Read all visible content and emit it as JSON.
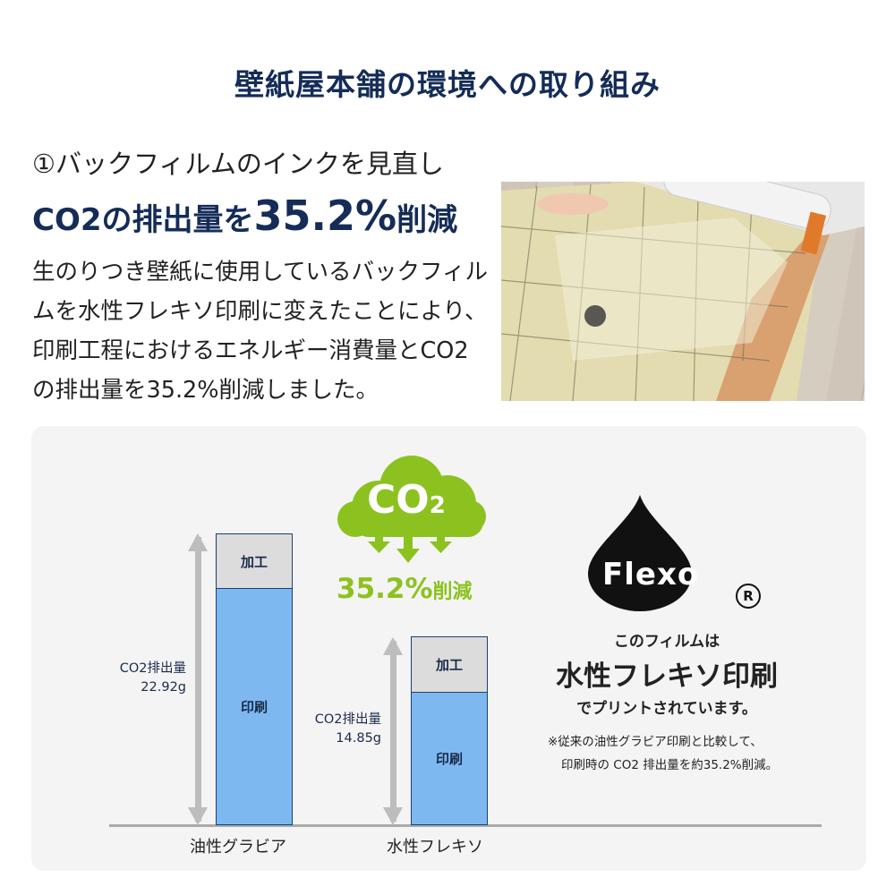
{
  "title": "壁紙屋本舗の環境への取り組み",
  "section": {
    "subheading": "①バックフィルムのインクを見直し",
    "headline_pre": "CO2の排出量を",
    "headline_value": "35.2%",
    "headline_post": "削減",
    "body": "生のりつき壁紙に使用しているバックフィルムを水性フレキソ印刷に変えたことにより、印刷工程におけるエネルギー消費量とCO2の排出量を35.2%削減しました。"
  },
  "graphic": {
    "cloud_label": "CO",
    "cloud_sub": "2",
    "reduction": "35.2%",
    "reduction_suffix": "削減",
    "bars": [
      {
        "category": "油性グラビア",
        "label": "CO2排出量",
        "value": "22.92g",
        "segments": [
          "加工",
          "印刷"
        ]
      },
      {
        "category": "水性フレキソ",
        "label": "CO2排出量",
        "value": "14.85g",
        "segments": [
          "加工",
          "印刷"
        ]
      }
    ],
    "flexo_logo": "Flexo",
    "registered": "®",
    "line1": "このフィルムは",
    "line2": "水性フレキソ印刷",
    "line3": "でプリントされています。",
    "note1": "※従来の油性グラビア印刷と比較して、",
    "note2": "印刷時の CO2 排出量を約35.2%削減。"
  },
  "colors": {
    "navy": "#142c57",
    "green": "#8cc21f",
    "bar_blue": "#7db9f0",
    "bar_gray": "#dcdcdc"
  }
}
